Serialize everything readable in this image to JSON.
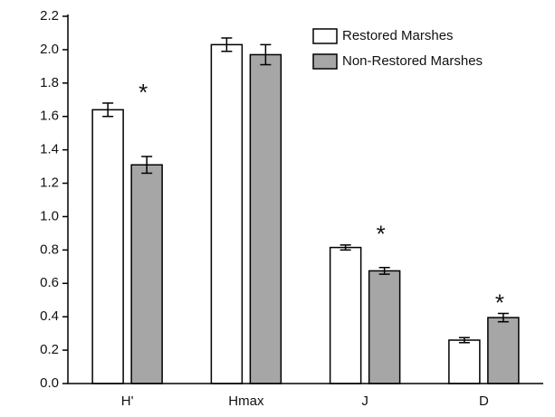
{
  "chart_data": {
    "type": "bar",
    "categories": [
      "H'",
      "Hmax",
      "J",
      "D"
    ],
    "series": [
      {
        "name": "Restored Marshes",
        "color": "#ffffff",
        "values": [
          1.64,
          2.03,
          0.815,
          0.26
        ],
        "errors": [
          0.04,
          0.04,
          0.015,
          0.015
        ]
      },
      {
        "name": "Non-Restored Marshes",
        "color": "#a6a6a6",
        "values": [
          1.31,
          1.97,
          0.675,
          0.395
        ],
        "errors": [
          0.05,
          0.06,
          0.02,
          0.025
        ]
      }
    ],
    "annotations": [
      {
        "text": "*",
        "category": "H'"
      },
      {
        "text": "*",
        "category": "J"
      },
      {
        "text": "*",
        "category": "D"
      }
    ],
    "ylim": [
      0,
      2.2
    ],
    "yticks": [
      {
        "value": 0,
        "label": "0.0"
      },
      0.2,
      0.4,
      0.6,
      0.8,
      {
        "value": 1,
        "label": "1.0"
      },
      1.2,
      1.4,
      1.6,
      1.8,
      {
        "value": 2,
        "label": "2.0"
      },
      2.2
    ],
    "legend": "top-right"
  }
}
